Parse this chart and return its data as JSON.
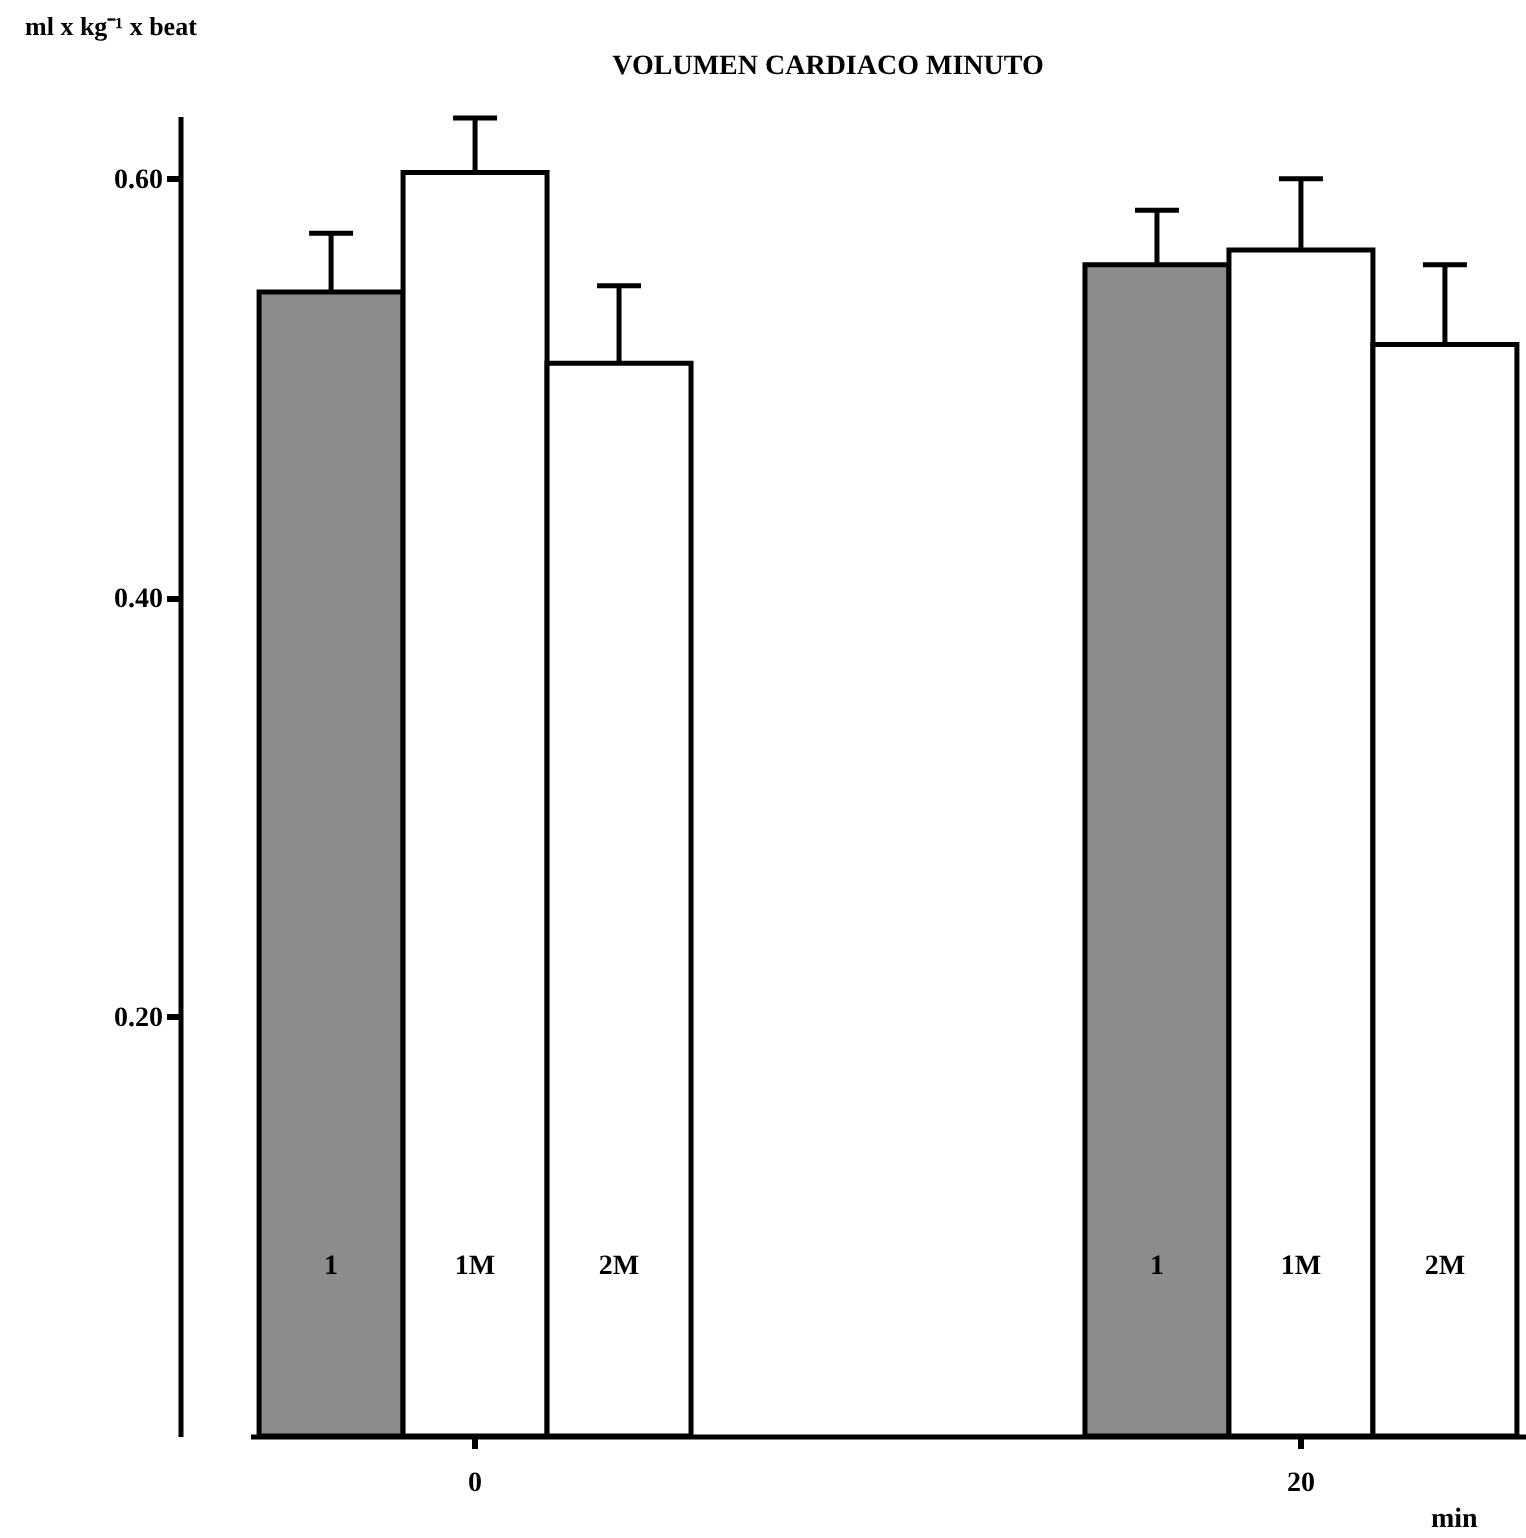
{
  "chart_data": {
    "type": "bar",
    "title": "VOLUMEN CARDIACO MINUTO",
    "ylabel": "ml x kg⁻¹ x beat",
    "xlabel": "min",
    "categories": [
      "0",
      "20"
    ],
    "series": [
      {
        "name": "1",
        "color": "#8c8c8c",
        "values": [
          0.546,
          0.559
        ],
        "errors": [
          [
            0.546,
            0.574
          ],
          [
            0.559,
            0.585
          ]
        ]
      },
      {
        "name": "1M",
        "color": "#ffffff",
        "values": [
          0.603,
          0.566
        ],
        "errors": [
          [
            0.603,
            0.629
          ],
          [
            0.566,
            0.6
          ]
        ]
      },
      {
        "name": "2M",
        "color": "#ffffff",
        "values": [
          0.512,
          0.521
        ],
        "errors": [
          [
            0.512,
            0.549
          ],
          [
            0.521,
            0.559
          ]
        ]
      }
    ],
    "ylim": [
      0,
      0.63
    ],
    "yticks": [
      {
        "value": 0.2,
        "label": "0.20"
      },
      {
        "value": 0.4,
        "label": "0.40"
      },
      {
        "value": 0.6,
        "label": "0.60"
      }
    ],
    "grid": false,
    "legend": false
  }
}
